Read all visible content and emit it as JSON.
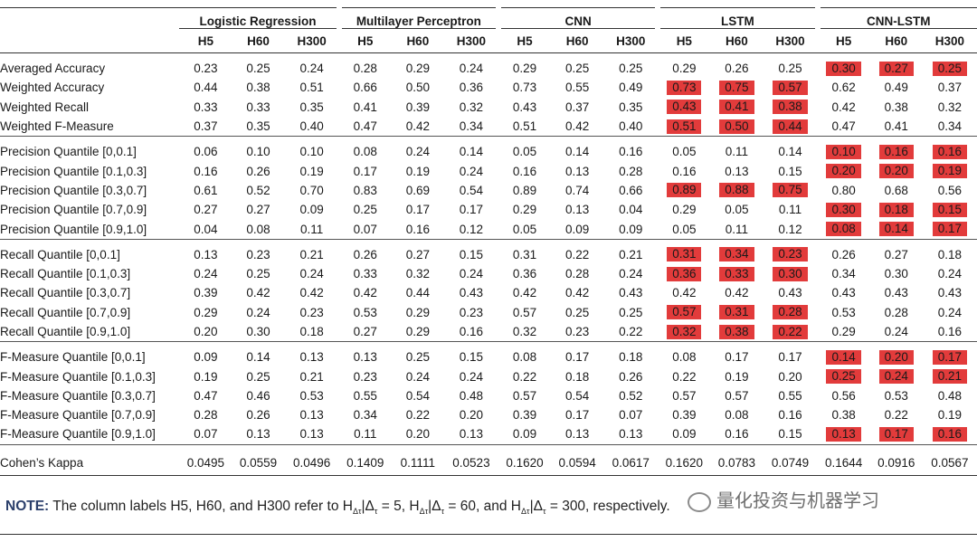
{
  "groups": [
    "Logistic Regression",
    "Multilayer Perceptron",
    "CNN",
    "LSTM",
    "CNN-LSTM"
  ],
  "horizons": [
    "H5",
    "H60",
    "H300"
  ],
  "sections": [
    {
      "rows": [
        {
          "label": "Averaged Accuracy",
          "values": [
            "0.23",
            "0.25",
            "0.24",
            "0.28",
            "0.29",
            "0.24",
            "0.29",
            "0.25",
            "0.25",
            "0.29",
            "0.26",
            "0.25",
            "0.30",
            "0.27",
            "0.25"
          ],
          "hl": [
            12,
            13,
            14
          ]
        },
        {
          "label": "Weighted Accuracy",
          "values": [
            "0.44",
            "0.38",
            "0.51",
            "0.66",
            "0.50",
            "0.36",
            "0.73",
            "0.55",
            "0.49",
            "0.73",
            "0.75",
            "0.57",
            "0.62",
            "0.49",
            "0.37"
          ],
          "hl": [
            9,
            10,
            11
          ]
        },
        {
          "label": "Weighted Recall",
          "values": [
            "0.33",
            "0.33",
            "0.35",
            "0.41",
            "0.39",
            "0.32",
            "0.43",
            "0.37",
            "0.35",
            "0.43",
            "0.41",
            "0.38",
            "0.42",
            "0.38",
            "0.32"
          ],
          "hl": [
            9,
            10,
            11
          ]
        },
        {
          "label": "Weighted F-Measure",
          "values": [
            "0.37",
            "0.35",
            "0.40",
            "0.47",
            "0.42",
            "0.34",
            "0.51",
            "0.42",
            "0.40",
            "0.51",
            "0.50",
            "0.44",
            "0.47",
            "0.41",
            "0.34"
          ],
          "hl": [
            9,
            10,
            11
          ]
        }
      ]
    },
    {
      "rows": [
        {
          "label": "Precision Quantile [0,0.1]",
          "values": [
            "0.06",
            "0.10",
            "0.10",
            "0.08",
            "0.24",
            "0.14",
            "0.05",
            "0.14",
            "0.16",
            "0.05",
            "0.11",
            "0.14",
            "0.10",
            "0.16",
            "0.16"
          ],
          "hl": [
            12,
            13,
            14
          ]
        },
        {
          "label": "Precision Quantile [0.1,0.3]",
          "values": [
            "0.16",
            "0.26",
            "0.19",
            "0.17",
            "0.19",
            "0.24",
            "0.16",
            "0.13",
            "0.28",
            "0.16",
            "0.13",
            "0.15",
            "0.20",
            "0.20",
            "0.19"
          ],
          "hl": [
            12,
            13,
            14
          ]
        },
        {
          "label": "Precision Quantile [0.3,0.7]",
          "values": [
            "0.61",
            "0.52",
            "0.70",
            "0.83",
            "0.69",
            "0.54",
            "0.89",
            "0.74",
            "0.66",
            "0.89",
            "0.88",
            "0.75",
            "0.80",
            "0.68",
            "0.56"
          ],
          "hl": [
            9,
            10,
            11
          ]
        },
        {
          "label": "Precision Quantile [0.7,0.9]",
          "values": [
            "0.27",
            "0.27",
            "0.09",
            "0.25",
            "0.17",
            "0.17",
            "0.29",
            "0.13",
            "0.04",
            "0.29",
            "0.05",
            "0.11",
            "0.30",
            "0.18",
            "0.15"
          ],
          "hl": [
            12,
            13,
            14
          ]
        },
        {
          "label": "Precision Quantile [0.9,1.0]",
          "values": [
            "0.04",
            "0.08",
            "0.11",
            "0.07",
            "0.16",
            "0.12",
            "0.05",
            "0.09",
            "0.09",
            "0.05",
            "0.11",
            "0.12",
            "0.08",
            "0.14",
            "0.17"
          ],
          "hl": [
            12,
            13,
            14
          ]
        }
      ]
    },
    {
      "rows": [
        {
          "label": "Recall Quantile [0,0.1]",
          "values": [
            "0.13",
            "0.23",
            "0.21",
            "0.26",
            "0.27",
            "0.15",
            "0.31",
            "0.22",
            "0.21",
            "0.31",
            "0.34",
            "0.23",
            "0.26",
            "0.27",
            "0.18"
          ],
          "hl": [
            9,
            10,
            11
          ]
        },
        {
          "label": "Recall Quantile [0.1,0.3]",
          "values": [
            "0.24",
            "0.25",
            "0.24",
            "0.33",
            "0.32",
            "0.24",
            "0.36",
            "0.28",
            "0.24",
            "0.36",
            "0.33",
            "0.30",
            "0.34",
            "0.30",
            "0.24"
          ],
          "hl": [
            9,
            10,
            11
          ]
        },
        {
          "label": "Recall Quantile [0.3,0.7]",
          "values": [
            "0.39",
            "0.42",
            "0.42",
            "0.42",
            "0.44",
            "0.43",
            "0.42",
            "0.42",
            "0.43",
            "0.42",
            "0.42",
            "0.43",
            "0.43",
            "0.43",
            "0.43"
          ],
          "hl": []
        },
        {
          "label": "Recall Quantile [0.7,0.9]",
          "values": [
            "0.29",
            "0.24",
            "0.23",
            "0.53",
            "0.29",
            "0.23",
            "0.57",
            "0.25",
            "0.25",
            "0.57",
            "0.31",
            "0.28",
            "0.53",
            "0.28",
            "0.24"
          ],
          "hl": [
            9,
            10,
            11
          ]
        },
        {
          "label": "Recall Quantile [0.9,1.0]",
          "values": [
            "0.20",
            "0.30",
            "0.18",
            "0.27",
            "0.29",
            "0.16",
            "0.32",
            "0.23",
            "0.22",
            "0.32",
            "0.38",
            "0.22",
            "0.29",
            "0.24",
            "0.16"
          ],
          "hl": [
            9,
            10,
            11
          ]
        }
      ]
    },
    {
      "rows": [
        {
          "label": "F-Measure Quantile [0,0.1]",
          "values": [
            "0.09",
            "0.14",
            "0.13",
            "0.13",
            "0.25",
            "0.15",
            "0.08",
            "0.17",
            "0.18",
            "0.08",
            "0.17",
            "0.17",
            "0.14",
            "0.20",
            "0.17"
          ],
          "hl": [
            12,
            13,
            14
          ]
        },
        {
          "label": "F-Measure Quantile [0.1,0.3]",
          "values": [
            "0.19",
            "0.25",
            "0.21",
            "0.23",
            "0.24",
            "0.24",
            "0.22",
            "0.18",
            "0.26",
            "0.22",
            "0.19",
            "0.20",
            "0.25",
            "0.24",
            "0.21"
          ],
          "hl": [
            12,
            13,
            14
          ]
        },
        {
          "label": "F-Measure Quantile [0.3,0.7]",
          "values": [
            "0.47",
            "0.46",
            "0.53",
            "0.55",
            "0.54",
            "0.48",
            "0.57",
            "0.54",
            "0.52",
            "0.57",
            "0.57",
            "0.55",
            "0.56",
            "0.53",
            "0.48"
          ],
          "hl": []
        },
        {
          "label": "F-Measure Quantile [0.7,0.9]",
          "values": [
            "0.28",
            "0.26",
            "0.13",
            "0.34",
            "0.22",
            "0.20",
            "0.39",
            "0.17",
            "0.07",
            "0.39",
            "0.08",
            "0.16",
            "0.38",
            "0.22",
            "0.19"
          ],
          "hl": []
        },
        {
          "label": "F-Measure Quantile [0.9,1.0]",
          "values": [
            "0.07",
            "0.13",
            "0.13",
            "0.11",
            "0.20",
            "0.13",
            "0.09",
            "0.13",
            "0.13",
            "0.09",
            "0.16",
            "0.15",
            "0.13",
            "0.17",
            "0.16"
          ],
          "hl": [
            12,
            13,
            14
          ]
        }
      ]
    }
  ],
  "kappa": {
    "label": "Cohen’s Kappa",
    "values": [
      "0.0495",
      "0.0559",
      "0.0496",
      "0.1409",
      "0.1111",
      "0.0523",
      "0.1620",
      "0.0594",
      "0.0617",
      "0.1620",
      "0.0783",
      "0.0749",
      "0.1644",
      "0.0916",
      "0.0567"
    ]
  },
  "note": {
    "label": "NOTE:",
    "text_1": " The column labels H5, H60, and H300 refer to H",
    "sub": "Δτ",
    "eq_1": "|Δ",
    "sub_t": "τ",
    "val_1": " = 5, H",
    "val_2": " = 60, and H",
    "val_3": " = 300, respectively."
  },
  "watermark": "量化投资与机器学习",
  "highlight_color": "#e23b3b"
}
